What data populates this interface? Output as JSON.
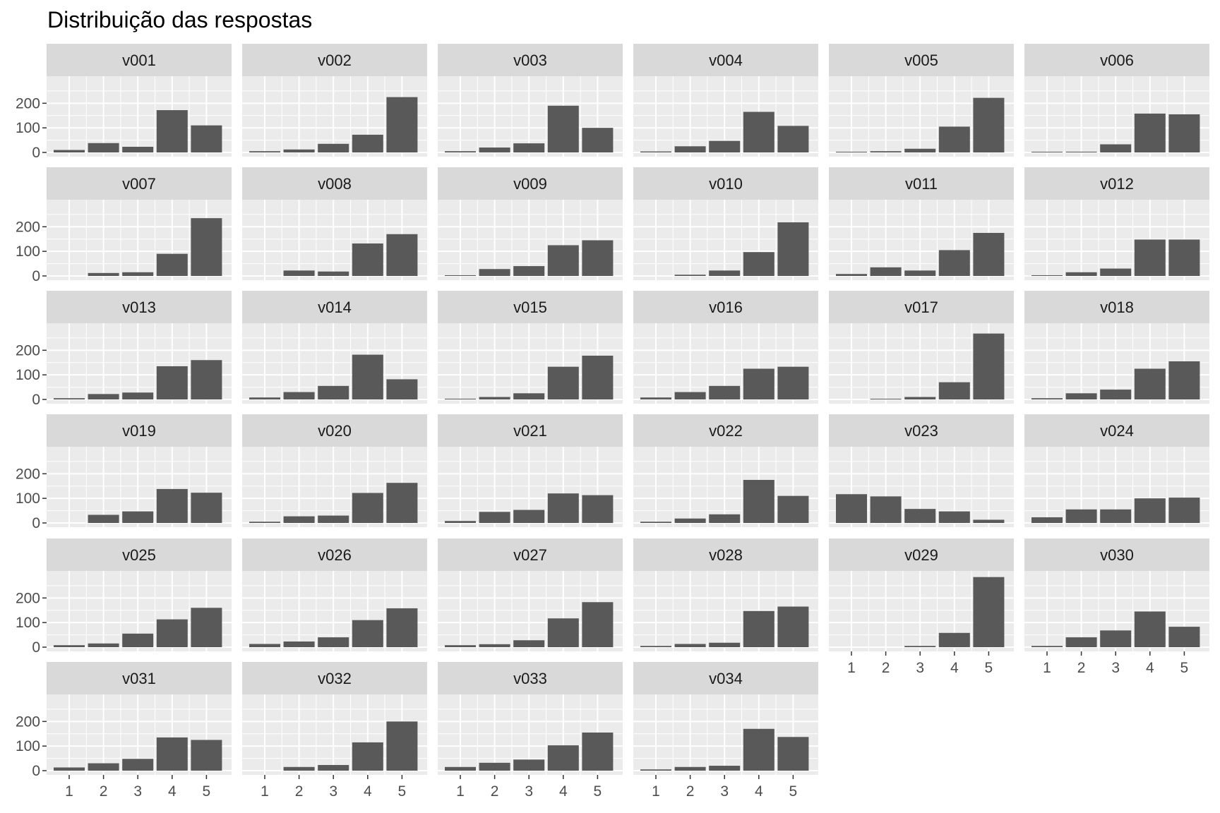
{
  "chart_data": {
    "type": "bar",
    "title": "Distribuição das respostas",
    "xlabel": "",
    "ylabel": "",
    "categories": [
      "1",
      "2",
      "3",
      "4",
      "5"
    ],
    "y_ticks": [
      "0",
      "100",
      "200"
    ],
    "ylim": [
      0,
      300
    ],
    "grid": true,
    "layout": "facet-wrap",
    "columns": 6,
    "bar_color": "#595959",
    "panel_background": "#ebebeb",
    "strip_background": "#d9d9d9",
    "facets": [
      {
        "name": "v001",
        "values": [
          10,
          38,
          23,
          172,
          110
        ]
      },
      {
        "name": "v002",
        "values": [
          5,
          12,
          35,
          72,
          225
        ]
      },
      {
        "name": "v003",
        "values": [
          5,
          20,
          37,
          190,
          100
        ]
      },
      {
        "name": "v004",
        "values": [
          4,
          25,
          47,
          165,
          108
        ]
      },
      {
        "name": "v005",
        "values": [
          2,
          5,
          15,
          105,
          222
        ]
      },
      {
        "name": "v006",
        "values": [
          2,
          3,
          33,
          158,
          155
        ]
      },
      {
        "name": "v007",
        "values": [
          0,
          12,
          15,
          90,
          235
        ]
      },
      {
        "name": "v008",
        "values": [
          0,
          22,
          18,
          132,
          170
        ]
      },
      {
        "name": "v009",
        "values": [
          3,
          28,
          40,
          125,
          145
        ]
      },
      {
        "name": "v010",
        "values": [
          0,
          5,
          22,
          97,
          218
        ]
      },
      {
        "name": "v011",
        "values": [
          8,
          35,
          22,
          105,
          175
        ]
      },
      {
        "name": "v012",
        "values": [
          3,
          15,
          30,
          148,
          148
        ]
      },
      {
        "name": "v013",
        "values": [
          5,
          22,
          28,
          135,
          160
        ]
      },
      {
        "name": "v014",
        "values": [
          8,
          30,
          55,
          182,
          82
        ]
      },
      {
        "name": "v015",
        "values": [
          3,
          10,
          25,
          133,
          178
        ]
      },
      {
        "name": "v016",
        "values": [
          8,
          30,
          55,
          125,
          133
        ]
      },
      {
        "name": "v017",
        "values": [
          0,
          2,
          10,
          70,
          268
        ]
      },
      {
        "name": "v018",
        "values": [
          5,
          25,
          40,
          125,
          155
        ]
      },
      {
        "name": "v019",
        "values": [
          0,
          33,
          47,
          138,
          123
        ]
      },
      {
        "name": "v020",
        "values": [
          5,
          27,
          30,
          122,
          163
        ]
      },
      {
        "name": "v021",
        "values": [
          8,
          45,
          53,
          120,
          113
        ]
      },
      {
        "name": "v022",
        "values": [
          5,
          18,
          35,
          175,
          110
        ]
      },
      {
        "name": "v023",
        "values": [
          117,
          108,
          57,
          47,
          13
        ]
      },
      {
        "name": "v024",
        "values": [
          23,
          55,
          55,
          100,
          103
        ]
      },
      {
        "name": "v025",
        "values": [
          8,
          15,
          55,
          113,
          160
        ]
      },
      {
        "name": "v026",
        "values": [
          13,
          23,
          40,
          110,
          158
        ]
      },
      {
        "name": "v027",
        "values": [
          8,
          12,
          28,
          117,
          183
        ]
      },
      {
        "name": "v028",
        "values": [
          5,
          13,
          18,
          147,
          165
        ]
      },
      {
        "name": "v029",
        "values": [
          0,
          0,
          5,
          58,
          285
        ]
      },
      {
        "name": "v030",
        "values": [
          5,
          40,
          68,
          145,
          83
        ]
      },
      {
        "name": "v031",
        "values": [
          13,
          30,
          48,
          135,
          125
        ]
      },
      {
        "name": "v032",
        "values": [
          0,
          15,
          23,
          115,
          200
        ]
      },
      {
        "name": "v033",
        "values": [
          15,
          32,
          45,
          103,
          155
        ]
      },
      {
        "name": "v034",
        "values": [
          5,
          15,
          20,
          170,
          137
        ]
      }
    ]
  }
}
